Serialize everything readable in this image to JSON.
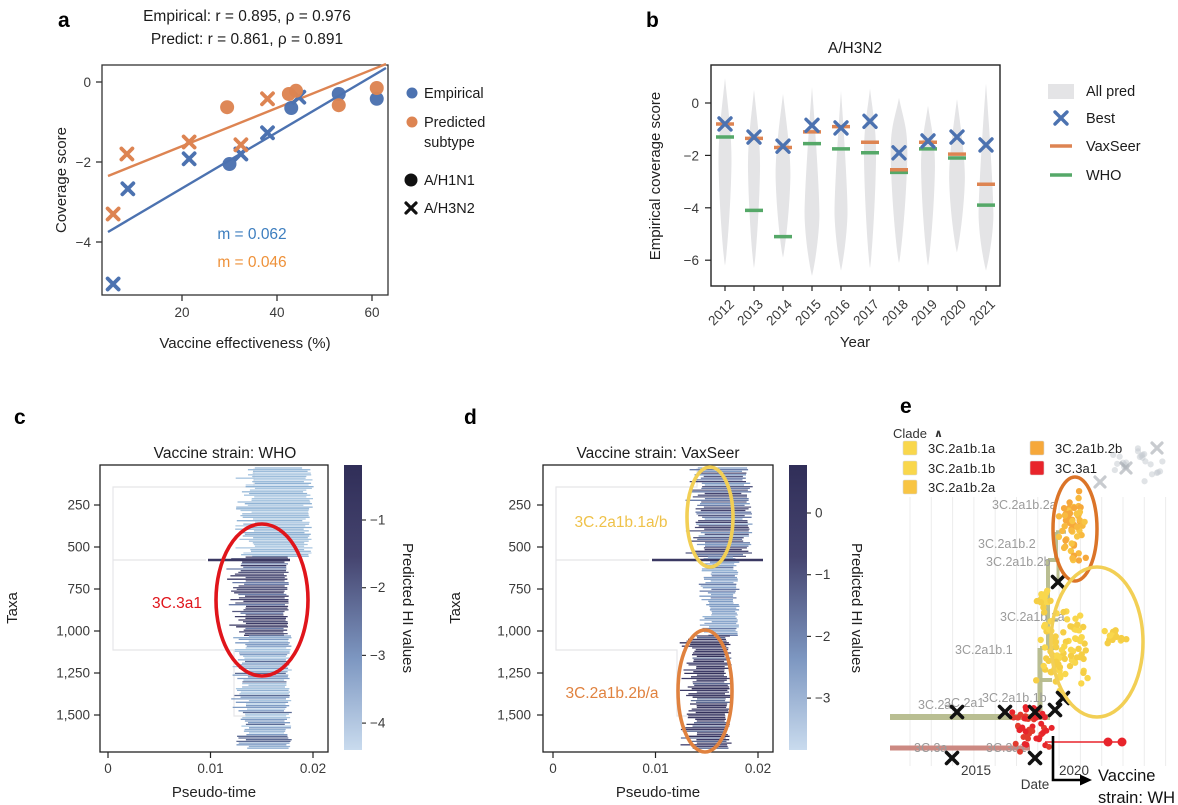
{
  "colors": {
    "blue": "#4C72B0",
    "orange": "#DD8452",
    "green": "#55A868",
    "black": "#111111"
  },
  "chart_data": [
    {
      "id": "a",
      "type": "scatter",
      "title_line1": "Empirical: r = 0.895, ρ = 0.976",
      "title_line2": "Predict: r = 0.861, ρ = 0.891",
      "xlabel": "Vaccine effectiveness (%)",
      "ylabel": "Coverage score",
      "xlim": [
        3,
        64
      ],
      "ylim": [
        -5.5,
        0.45
      ],
      "xticks": [
        {
          "v": 20,
          "label": "20"
        },
        {
          "v": 40,
          "label": "40"
        },
        {
          "v": 60,
          "label": "60"
        }
      ],
      "yticks": [
        {
          "v": 0,
          "label": "0"
        },
        {
          "v": -2,
          "label": "−2"
        },
        {
          "v": -4,
          "label": "−4"
        }
      ],
      "series": [
        {
          "name": "empirical-h1n1",
          "color": "#4C72B0",
          "marker": "circle",
          "points": [
            [
              30,
              -2.05
            ],
            [
              43,
              -0.65
            ],
            [
              53,
              -0.3
            ],
            [
              61,
              -0.42
            ]
          ]
        },
        {
          "name": "empirical-h3n2",
          "color": "#4C72B0",
          "marker": "x",
          "points": [
            [
              5.5,
              -5.05
            ],
            [
              8.6,
              -2.67
            ],
            [
              21.5,
              -1.92
            ],
            [
              32.4,
              -1.8
            ],
            [
              38,
              -1.27
            ],
            [
              44.6,
              -0.38
            ]
          ]
        },
        {
          "name": "predicted-h1n1",
          "color": "#DD8452",
          "marker": "circle",
          "points": [
            [
              29.5,
              -0.63
            ],
            [
              42.5,
              -0.3
            ],
            [
              44,
              -0.22
            ],
            [
              53,
              -0.58
            ],
            [
              61,
              -0.15
            ]
          ]
        },
        {
          "name": "predicted-h3n2",
          "color": "#DD8452",
          "marker": "x",
          "points": [
            [
              5.5,
              -3.3
            ],
            [
              8.4,
              -1.8
            ],
            [
              21.5,
              -1.5
            ],
            [
              32.4,
              -1.57
            ],
            [
              38,
              -0.42
            ]
          ]
        }
      ],
      "fit_lines": [
        {
          "name": "empirical-fit",
          "color": "#4C72B0",
          "label_color": "#3D7EBF",
          "slope_label": "m = 0.062"
        },
        {
          "name": "predicted-fit",
          "color": "#DD8452",
          "label_color": "#EE9139",
          "slope_label": "m = 0.046"
        }
      ],
      "legend": {
        "empirical": "Empirical",
        "predicted_line1": "Predicted",
        "predicted_line2": "subtype",
        "h1n1": "A/H1N1",
        "h3n2": "A/H3N2"
      }
    },
    {
      "id": "b",
      "type": "violin",
      "title": "A/H3N2",
      "xlabel": "Year",
      "ylabel": "Empirical coverage score",
      "categories": [
        "2012",
        "2013",
        "2014",
        "2015",
        "2016",
        "2017",
        "2018",
        "2019",
        "2020",
        "2021"
      ],
      "yticks": [
        {
          "v": 0,
          "label": "0"
        },
        {
          "v": -2,
          "label": "−2"
        },
        {
          "v": -4,
          "label": "−4"
        },
        {
          "v": -6,
          "label": "−6"
        }
      ],
      "ylim": [
        -7,
        1.45
      ],
      "violin_color": "#E4E4E6",
      "violins": [
        {
          "top": 0.95,
          "peak": -2.4,
          "bottom": -6.2,
          "halfwidth": 7
        },
        {
          "top": 0.5,
          "peak": -2.6,
          "bottom": -6.3,
          "halfwidth": 6.5
        },
        {
          "top": 0.35,
          "peak": -2.9,
          "bottom": -5.9,
          "halfwidth": 8
        },
        {
          "top": 0.6,
          "peak": -4.4,
          "bottom": -6.6,
          "halfwidth": 8
        },
        {
          "top": 0.45,
          "peak": -4.3,
          "bottom": -6.4,
          "halfwidth": 7
        },
        {
          "top": 0.55,
          "peak": -2.2,
          "bottom": -6.3,
          "halfwidth": 6.5
        },
        {
          "top": 0.2,
          "peak": -2.1,
          "bottom": -6.1,
          "halfwidth": 9
        },
        {
          "top": -0.1,
          "peak": -2.6,
          "bottom": -6.2,
          "halfwidth": 7.5
        },
        {
          "top": 0.15,
          "peak": -3.0,
          "bottom": -5.7,
          "halfwidth": 8.5
        },
        {
          "top": 0.75,
          "peak": -4.4,
          "bottom": -6.4,
          "halfwidth": 8
        }
      ],
      "series": [
        {
          "name": "Best",
          "marker": "x",
          "color": "#4C72B0",
          "values": [
            -0.8,
            -1.3,
            -1.65,
            -0.85,
            -0.95,
            -0.7,
            -1.9,
            -1.45,
            -1.3,
            -1.6
          ]
        },
        {
          "name": "VaxSeer",
          "marker": "dash",
          "color": "#DD8452",
          "values": [
            -0.8,
            -1.35,
            -1.7,
            -1.1,
            -0.9,
            -1.5,
            -2.55,
            -1.5,
            -1.95,
            -3.1
          ]
        },
        {
          "name": "WHO",
          "marker": "dash",
          "color": "#55A868",
          "values": [
            -1.3,
            -4.1,
            -5.1,
            -1.55,
            -1.75,
            -1.9,
            -2.65,
            -1.75,
            -2.1,
            -3.9
          ]
        }
      ],
      "legend": {
        "all_pred": "All pred",
        "best": "Best",
        "vaxseer": "VaxSeer",
        "who": "WHO"
      }
    },
    {
      "id": "c",
      "type": "heatmap",
      "title": "Vaccine strain: WHO",
      "xlabel": "Pseudo-time",
      "ylabel": "Taxa",
      "xticks": [
        {
          "v": 0,
          "label": "0"
        },
        {
          "v": 0.01,
          "label": "0.01"
        },
        {
          "v": 0.02,
          "label": "0.02"
        }
      ],
      "yticks": [
        {
          "v": 250,
          "label": "250"
        },
        {
          "v": 500,
          "label": "500"
        },
        {
          "v": 750,
          "label": "750"
        },
        {
          "v": 1000,
          "label": "1,000"
        },
        {
          "v": 1250,
          "label": "1,250"
        },
        {
          "v": 1500,
          "label": "1,500"
        }
      ],
      "colorbar": {
        "label": "Predicted HI values",
        "ticks": [
          {
            "v": -1,
            "label": "−1"
          },
          {
            "v": -2,
            "label": "−2"
          },
          {
            "v": -3,
            "label": "−3"
          },
          {
            "v": -4,
            "label": "−4"
          }
        ]
      },
      "segments": [
        {
          "taxa_from": 30,
          "taxa_to": 560,
          "hi_range": [
            -4.5,
            -3.0
          ],
          "shade": "light"
        },
        {
          "taxa_from": 560,
          "taxa_to": 1030,
          "hi_range": [
            -1.5,
            -0.5
          ],
          "shade": "dark"
        },
        {
          "taxa_from": 1030,
          "taxa_to": 1700,
          "hi_range": [
            -3.5,
            -2.0
          ],
          "shade": "medium"
        }
      ],
      "palette": {
        "light": [
          "#A9C6E0",
          "#9CBCDA",
          "#B6CFE6",
          "#8FB2D4"
        ],
        "dark": [
          "#3D3B66",
          "#45446F",
          "#56597F",
          "#6A7CA8"
        ],
        "medium": [
          "#7F9CC4",
          "#92B0D2",
          "#A9C6E0",
          "#5C6B94"
        ]
      },
      "annotations": [
        {
          "text": "3C.3a1",
          "color": "#E0151B",
          "ellipse_color": "#E0151B"
        }
      ]
    },
    {
      "id": "d",
      "type": "heatmap",
      "title": "Vaccine strain: VaxSeer",
      "xlabel": "Pseudo-time",
      "ylabel": "Taxa",
      "xticks": [
        {
          "v": 0,
          "label": "0"
        },
        {
          "v": 0.01,
          "label": "0.01"
        },
        {
          "v": 0.02,
          "label": "0.02"
        }
      ],
      "yticks": [
        {
          "v": 250,
          "label": "250"
        },
        {
          "v": 500,
          "label": "500"
        },
        {
          "v": 750,
          "label": "750"
        },
        {
          "v": 1000,
          "label": "1,000"
        },
        {
          "v": 1250,
          "label": "1,250"
        },
        {
          "v": 1500,
          "label": "1,500"
        }
      ],
      "colorbar": {
        "label": "Predicted HI values",
        "ticks": [
          {
            "v": 0,
            "label": "0"
          },
          {
            "v": -1,
            "label": "−1"
          },
          {
            "v": -2,
            "label": "−2"
          },
          {
            "v": -3,
            "label": "−3"
          }
        ]
      },
      "segments": [
        {
          "taxa_from": 30,
          "taxa_to": 560,
          "hi_range": [
            -1.5,
            -0.5
          ],
          "shade": "mediumdark"
        },
        {
          "taxa_from": 560,
          "taxa_to": 1030,
          "hi_range": [
            -2.5,
            -1.5
          ],
          "shade": "medium"
        },
        {
          "taxa_from": 1030,
          "taxa_to": 1700,
          "hi_range": [
            -1.0,
            0.0
          ],
          "shade": "dark"
        }
      ],
      "palette": {
        "mediumdark": [
          "#565A82",
          "#6A7CA8",
          "#7F9CC4",
          "#45446F"
        ],
        "medium": [
          "#8AA6CC",
          "#7F9CC4",
          "#98B6D6",
          "#6A7CA8"
        ],
        "dark": [
          "#3D3B66",
          "#34325C",
          "#4A4974",
          "#5C6B94"
        ]
      },
      "annotations": [
        {
          "text": "3C.2a1b.1a/b",
          "color": "#EFC24A",
          "ellipse_color": "#F2CF55"
        },
        {
          "text": "3C.2a1b.2b/a",
          "color": "#E0823F",
          "ellipse_color": "#E0823F"
        }
      ]
    },
    {
      "id": "e",
      "type": "phylogenetic-tree",
      "legend_title": "Clade",
      "legend_caret": "∧",
      "clades": [
        {
          "label": "3C.2a1b.1a",
          "color": "#F9D74C"
        },
        {
          "label": "3C.2a1b.1b",
          "color": "#F9D74C"
        },
        {
          "label": "3C.2a1b.2a",
          "color": "#F8C544"
        },
        {
          "label": "3C.2a1b.2b",
          "color": "#F6A83B"
        },
        {
          "label": "3C.3a1",
          "color": "#E8242B"
        }
      ],
      "branch_labels": [
        "3C.2a1b.2a",
        "3C.2a1b.2",
        "3C.2a1b.2b",
        "3C.2a1b.1a",
        "3C.2a1b.1",
        "3C.2a1b.1b",
        "3C.2a",
        "3C.2a1",
        "3C.3a",
        "3C.3a1"
      ],
      "xlabel": "Date",
      "xticks": [
        "2015",
        "2020"
      ],
      "note_line1": "Vaccine",
      "note_line2": "strain: WH",
      "branch_color": "#B5BB8C",
      "branch_color2": "#C9837B",
      "grid_color": "#ECECEC",
      "x_marker_color": "#111111",
      "faded_color": "#C7CCD1",
      "ellipses": [
        {
          "name": "orange-ellipse",
          "color": "#DB7428"
        },
        {
          "name": "yellow-ellipse",
          "color": "#F2CF55"
        }
      ]
    }
  ]
}
